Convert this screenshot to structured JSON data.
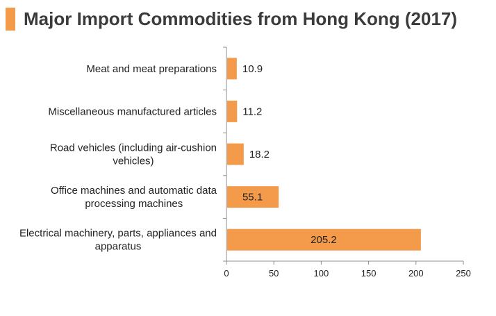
{
  "title": "Major Import Commodities from Hong Kong (2017)",
  "colors": {
    "accent": "#f39a4b",
    "bar": "#f39a4b",
    "axis": "#8c8c8c",
    "text": "#222222"
  },
  "chart_data": {
    "type": "bar",
    "orientation": "horizontal",
    "title": "Major Import Commodities from Hong Kong (2017)",
    "xlabel": "",
    "ylabel": "",
    "xlim": [
      0,
      250
    ],
    "xticks": [
      0,
      50,
      100,
      150,
      200,
      250
    ],
    "grid": false,
    "legend": "none",
    "categories": [
      "Meat and meat preparations",
      "Miscellaneous manufactured articles",
      "Road vehicles (including air-cushion vehicles)",
      "Office machines and automatic data processing machines",
      "Electrical machinery, parts, appliances and apparatus"
    ],
    "category_lines": [
      [
        "Meat and meat preparations"
      ],
      [
        "Miscellaneous manufactured articles"
      ],
      [
        "Road vehicles (including air-cushion",
        "vehicles)"
      ],
      [
        "Office machines and automatic data",
        "processing machines"
      ],
      [
        "Electrical machinery, parts, appliances and",
        "apparatus"
      ]
    ],
    "values": [
      10.9,
      11.2,
      18.2,
      55.1,
      205.2
    ],
    "data_labels": [
      "10.9",
      "11.2",
      "18.2",
      "55.1",
      "205.2"
    ]
  }
}
